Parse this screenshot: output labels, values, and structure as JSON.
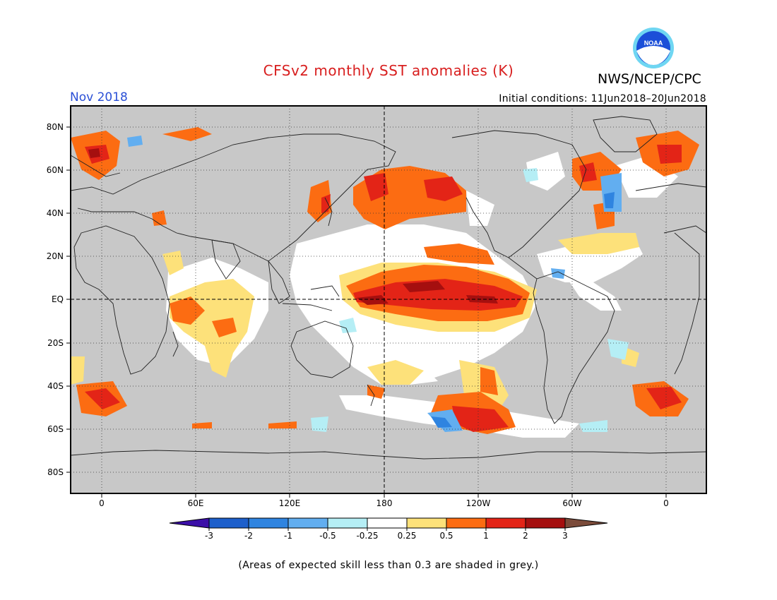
{
  "header": {
    "title": "CFSv2 monthly SST anomalies (K)",
    "agency": "NWS/NCEP/CPC",
    "logo_text": "NOAA",
    "month": "Nov 2018",
    "initial_conditions": "Initial conditions: 11Jun2018–20Jun2018"
  },
  "map": {
    "projection": "cylindrical equidistant, 30E-centred? no — longitude range about 20W to 380E (0 repeated at both sides)",
    "lat_ticks": [
      "80N",
      "60N",
      "40N",
      "20N",
      "EQ",
      "20S",
      "40S",
      "60S",
      "80S"
    ],
    "lon_ticks": [
      "0",
      "60E",
      "120E",
      "180",
      "120W",
      "60W",
      "0"
    ],
    "grey_meaning": "expected skill less than 0.3"
  },
  "colorbar": {
    "labels": [
      "-3",
      "-2",
      "-1",
      "-0.5",
      "-0.25",
      "0.25",
      "0.5",
      "1",
      "2",
      "3"
    ],
    "colors": {
      "lt_neg3": "#3b0fa8",
      "neg3_neg2": "#1d5fcb",
      "neg2_neg1": "#2f84e0",
      "neg1_neg05": "#62aef0",
      "neg05_neg025": "#b5eef5",
      "neg025_025": "#ffffff",
      "p025_p05": "#fde17a",
      "p05_p1": "#fc6c12",
      "p1_p2": "#e32417",
      "p2_p3": "#a50f0f",
      "gt3": "#7b4b3a"
    }
  },
  "footnote": "(Areas of expected skill less than 0.3 are shaded in grey.)"
}
